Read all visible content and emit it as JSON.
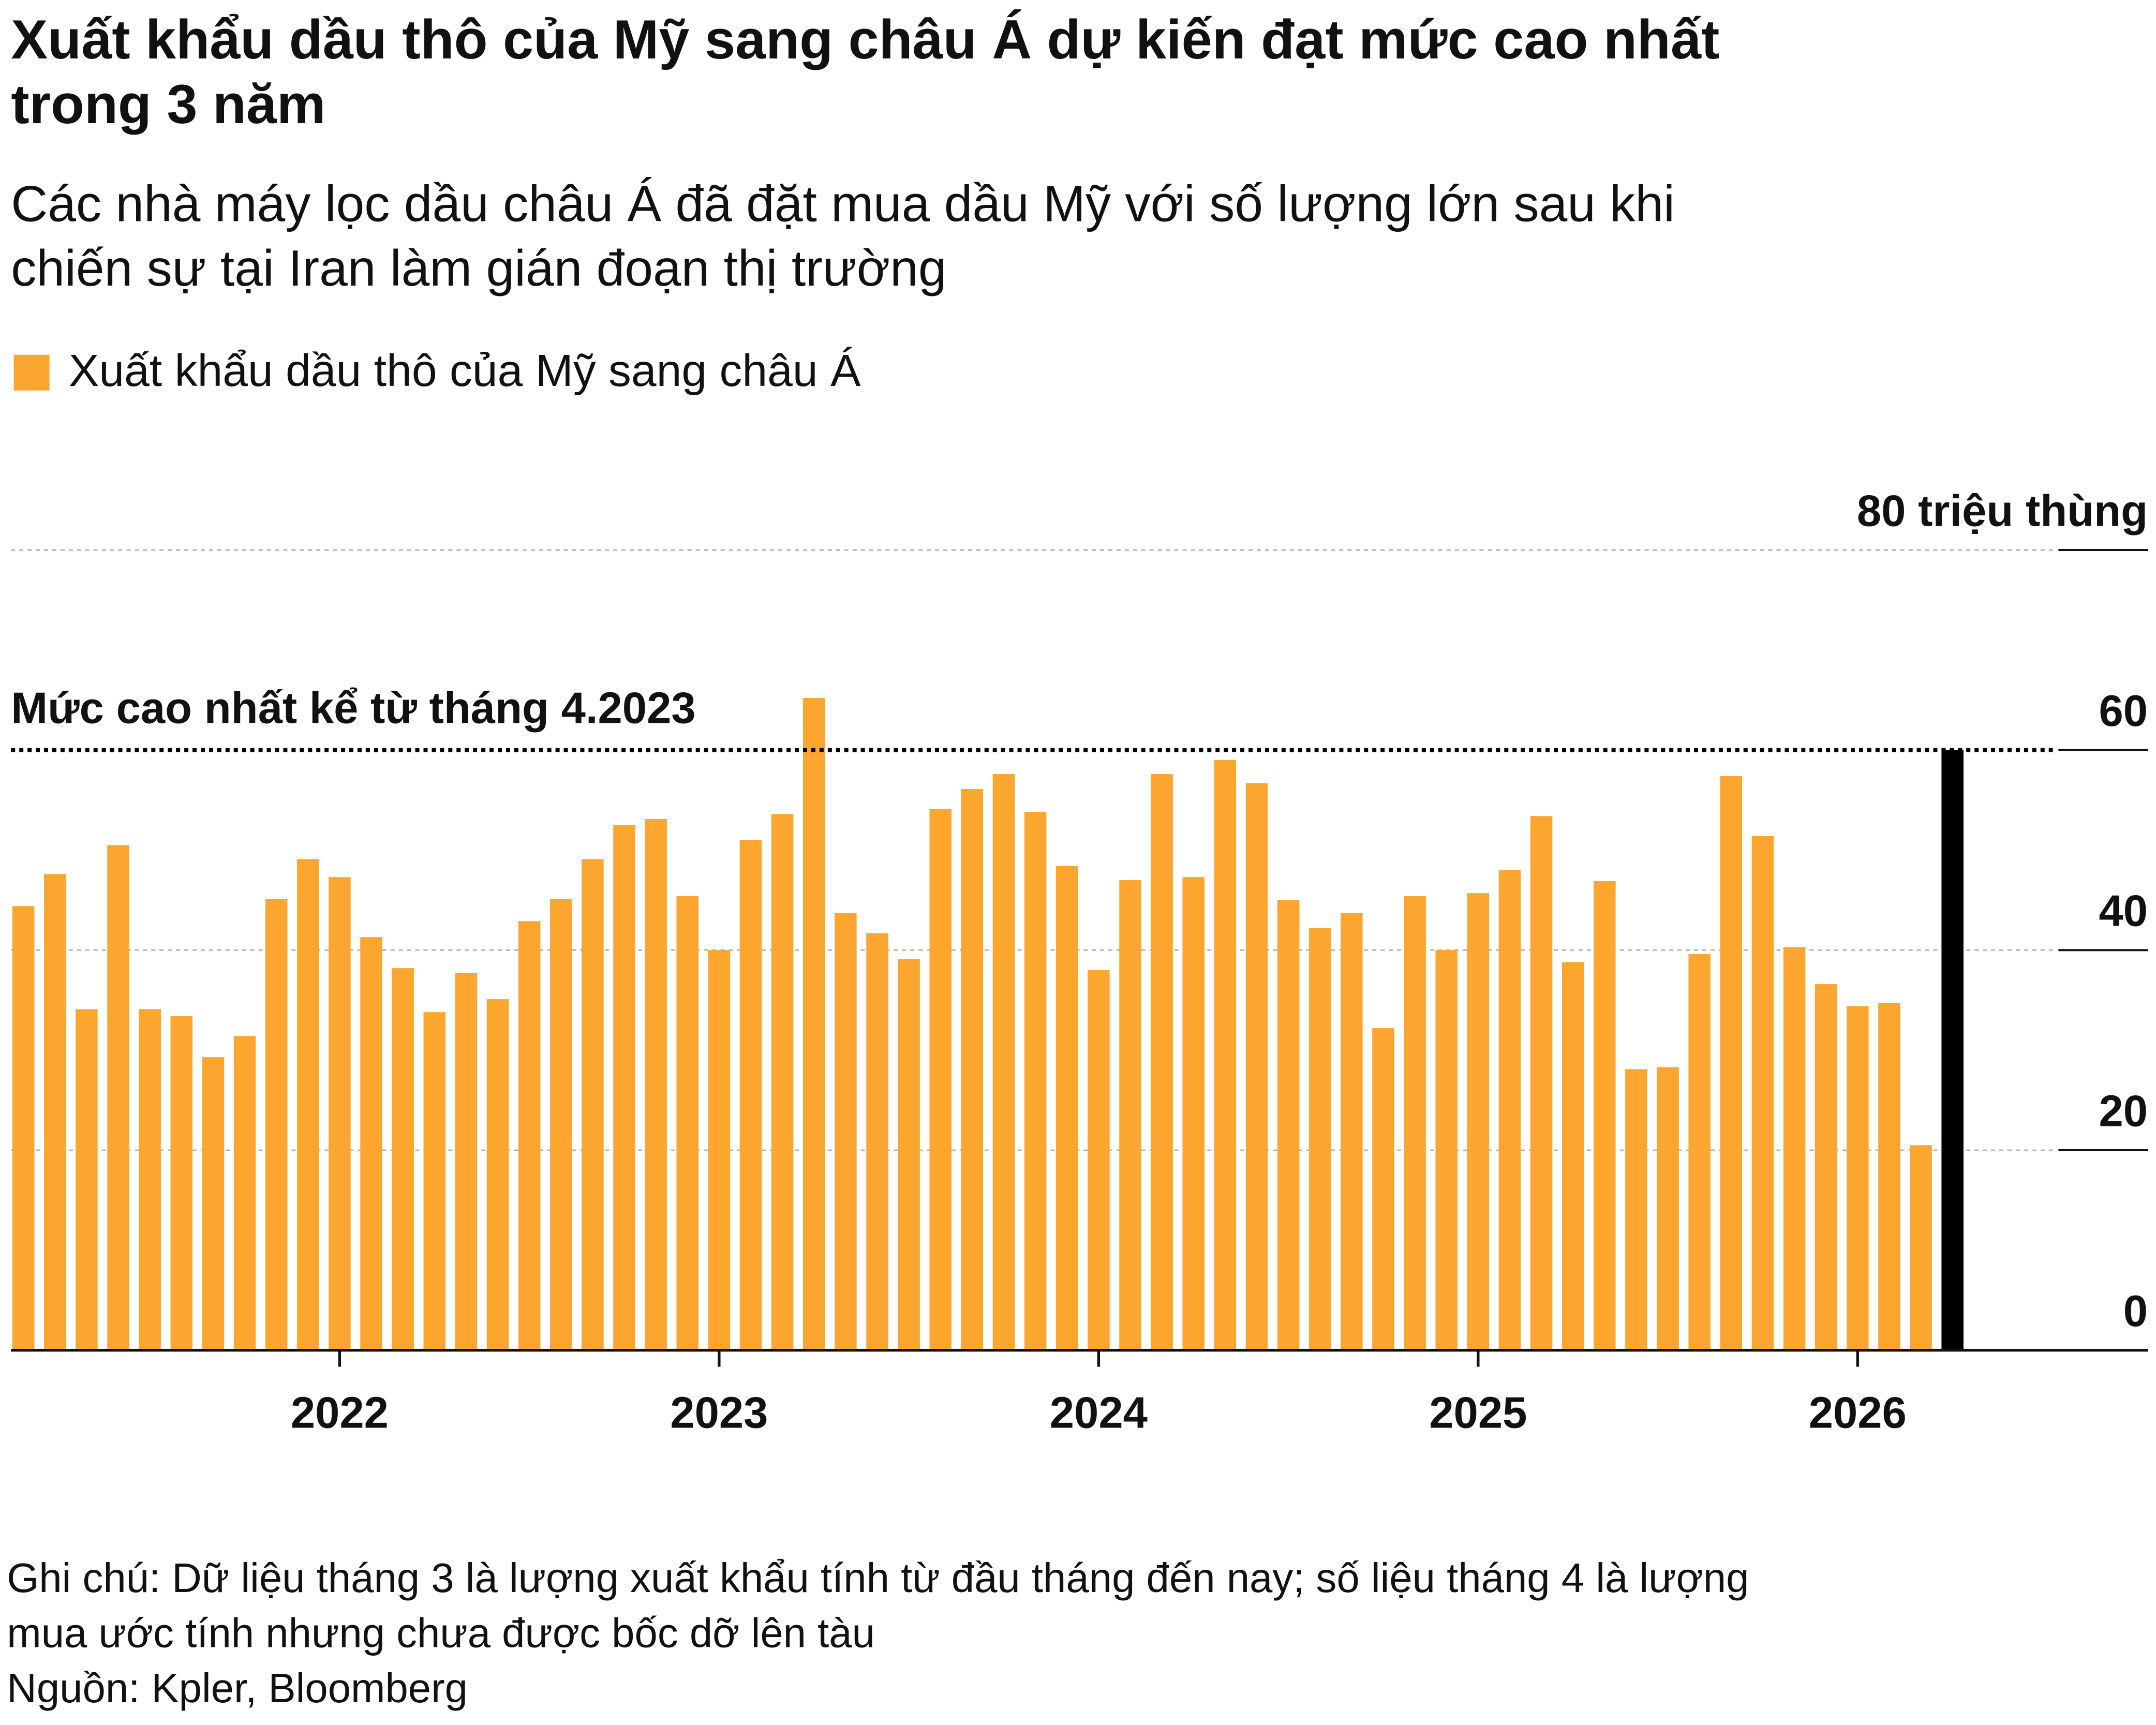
{
  "chart_data": {
    "type": "bar",
    "title": [
      "Xuất khẩu dầu thô của Mỹ sang châu Á dự kiến đạt mức cao nhất",
      "trong 3 năm"
    ],
    "subtitle": [
      "Các nhà máy lọc dầu châu Á đã đặt mua dầu Mỹ với số lượng lớn sau khi",
      "chiến sự tại Iran làm gián đoạn thị trường"
    ],
    "categories": [
      null,
      null,
      null,
      null,
      null,
      null,
      null,
      null,
      null,
      null,
      "2022",
      null,
      null,
      null,
      null,
      null,
      null,
      null,
      null,
      null,
      null,
      null,
      "2023",
      null,
      null,
      null,
      null,
      null,
      null,
      null,
      null,
      null,
      null,
      null,
      "2024",
      null,
      null,
      null,
      null,
      null,
      null,
      null,
      null,
      null,
      null,
      null,
      "2025",
      null,
      null,
      null,
      null,
      null,
      null,
      null,
      null,
      null,
      null,
      null,
      "2026",
      null,
      null,
      null
    ],
    "series": [
      {
        "name": "Xuất khẩu dầu thô của Mỹ sang châu Á",
        "color": "#fca62f",
        "values": [
          44.4,
          47.6,
          34.1,
          50.5,
          34.1,
          33.4,
          29.3,
          31.4,
          45.1,
          49.1,
          47.3,
          41.3,
          38.2,
          33.8,
          37.7,
          35.1,
          42.9,
          45.1,
          49.1,
          52.5,
          53.1,
          45.4,
          40,
          51,
          53.6,
          65.2,
          43.7,
          41.7,
          39.1,
          54.1,
          56.1,
          57.6,
          53.8,
          48.4,
          38,
          47,
          57.6,
          47.3,
          59,
          56.7,
          45,
          42.2,
          43.7,
          32.2,
          45.4,
          40,
          45.7,
          48,
          53.4,
          38.8,
          46.9,
          28.1,
          28.3,
          39.6,
          57.4,
          51.4,
          40.3,
          36.6,
          34.4,
          34.7,
          20.5,
          null
        ]
      },
      {
        "color": "#000000",
        "values": [
          null,
          null,
          null,
          null,
          null,
          null,
          null,
          null,
          null,
          null,
          null,
          null,
          null,
          null,
          null,
          null,
          null,
          null,
          null,
          null,
          null,
          null,
          null,
          null,
          null,
          null,
          null,
          null,
          null,
          null,
          null,
          null,
          null,
          null,
          null,
          null,
          null,
          null,
          null,
          null,
          null,
          null,
          null,
          null,
          null,
          null,
          null,
          null,
          null,
          null,
          null,
          null,
          null,
          null,
          null,
          null,
          null,
          null,
          null,
          null,
          null,
          60
        ]
      }
    ],
    "ylim": [
      0,
      80
    ],
    "yticks": [
      0,
      20,
      40,
      60,
      {
        "value": 80,
        "label": "80 triệu thùng"
      }
    ],
    "grid": true,
    "reference_line": {
      "value": 60,
      "label": "Mức cao nhất kể từ tháng 4.2023"
    },
    "note": [
      "Ghi chú: Dữ liệu tháng 3 là lượng xuất khẩu tính từ đầu tháng đến nay; số liệu tháng 4 là lượng",
      "mua ước tính nhưng chưa được bốc dỡ lên tàu"
    ],
    "source": "Nguồn: Kpler, Bloomberg"
  }
}
